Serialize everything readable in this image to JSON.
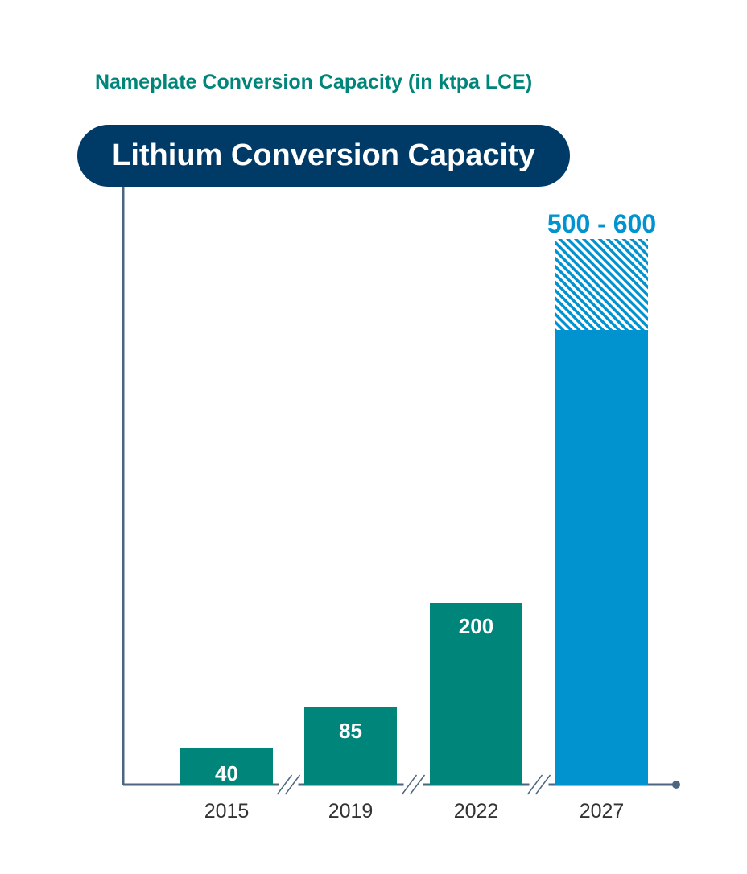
{
  "chart_data": {
    "type": "bar",
    "title": "Lithium Conversion Capacity",
    "subtitle": "Nameplate Conversion Capacity (in ktpa LCE)",
    "categories": [
      "2015",
      "2019",
      "2022",
      "2027"
    ],
    "values": [
      40,
      85,
      200,
      500
    ],
    "value_labels": [
      "40",
      "85",
      "200",
      ""
    ],
    "range_top": [
      null,
      null,
      null,
      600
    ],
    "range_label": "500 - 600",
    "ylim": [
      0,
      600
    ],
    "axis_breaks_between": [
      [
        0,
        1
      ],
      [
        1,
        2
      ],
      [
        2,
        3
      ]
    ],
    "grid": false,
    "colors": {
      "actual": "#00857a",
      "forecast": "#0093cf",
      "title_bg": "#003a66",
      "axis": "#4d6680"
    }
  }
}
